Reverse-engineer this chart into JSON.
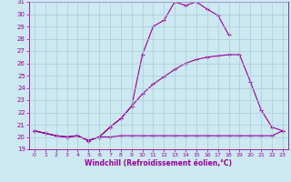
{
  "xlabel": "Windchill (Refroidissement éolien,°C)",
  "line_color": "#990099",
  "bg_color": "#cce8f0",
  "grid_color": "#aaccdd",
  "xlim": [
    -0.5,
    23.5
  ],
  "ylim": [
    19,
    31
  ],
  "yticks": [
    19,
    20,
    21,
    22,
    23,
    24,
    25,
    26,
    27,
    28,
    29,
    30,
    31
  ],
  "xticks": [
    0,
    1,
    2,
    3,
    4,
    5,
    6,
    7,
    8,
    9,
    10,
    11,
    12,
    13,
    14,
    15,
    16,
    17,
    18,
    19,
    20,
    21,
    22,
    23
  ],
  "series": [
    {
      "x": [
        0,
        1,
        2,
        3,
        4,
        5,
        6,
        7,
        8,
        9,
        10,
        11,
        12,
        13,
        14,
        15,
        16,
        17,
        18,
        19,
        20,
        21,
        22,
        23
      ],
      "y": [
        20.5,
        20.3,
        20.1,
        20.0,
        20.1,
        19.7,
        20.0,
        20.0,
        20.1,
        20.1,
        20.1,
        20.1,
        20.1,
        20.1,
        20.1,
        20.1,
        20.1,
        20.1,
        20.1,
        20.1,
        20.1,
        20.1,
        20.1,
        20.5
      ]
    },
    {
      "x": [
        0,
        1,
        2,
        3,
        4,
        5,
        6,
        7,
        8,
        9,
        10,
        11,
        12,
        13,
        14,
        15,
        16,
        17,
        18,
        19,
        20,
        21,
        22,
        23
      ],
      "y": [
        20.5,
        20.3,
        20.1,
        20.0,
        20.1,
        19.7,
        20.0,
        20.8,
        21.5,
        22.5,
        26.7,
        29.0,
        29.5,
        31.0,
        30.7,
        31.0,
        30.4,
        29.9,
        28.3,
        null,
        null,
        null,
        null,
        null
      ]
    },
    {
      "x": [
        0,
        1,
        2,
        3,
        4,
        5,
        6,
        7,
        8,
        9,
        10,
        11,
        12,
        13,
        14,
        15,
        16,
        17,
        18,
        19,
        20,
        21,
        22,
        23
      ],
      "y": [
        20.5,
        20.3,
        20.1,
        20.0,
        20.1,
        19.7,
        20.0,
        20.8,
        21.5,
        22.5,
        23.5,
        24.3,
        24.9,
        25.5,
        26.0,
        26.3,
        26.5,
        26.6,
        26.7,
        26.7,
        24.5,
        22.2,
        20.8,
        20.5
      ]
    }
  ]
}
